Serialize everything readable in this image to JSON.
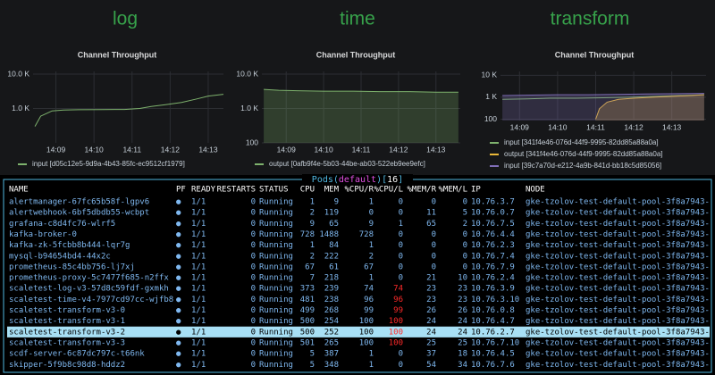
{
  "dashboard": {
    "panels": [
      {
        "heading": "log",
        "chart": {
          "type": "line",
          "title": "Channel Throughput",
          "log_scale": true,
          "grid": true,
          "ylim": [
            100,
            12000
          ],
          "yticks": [
            {
              "value": 1000,
              "label": "1.0 K"
            },
            {
              "value": 10000,
              "label": "10.0 K"
            }
          ],
          "xlim": [
            8.4,
            13.4
          ],
          "xticks": [
            {
              "value": 9,
              "label": "14:09"
            },
            {
              "value": 10,
              "label": "14:10"
            },
            {
              "value": 11,
              "label": "14:11"
            },
            {
              "value": 12,
              "label": "14:12"
            },
            {
              "value": 13,
              "label": "14:13"
            }
          ],
          "series": [
            {
              "name": "input [d05c12e5-9d9a-4b43-85fc-ec9512cf1979]",
              "color": "#7eb26d",
              "fill": false,
              "x": [
                8.45,
                8.6,
                8.9,
                9.2,
                9.6,
                10.2,
                10.8,
                11.2,
                11.5,
                11.9,
                12.3,
                12.7,
                13.0,
                13.4
              ],
              "values": [
                300,
                600,
                850,
                900,
                920,
                930,
                940,
                1000,
                1150,
                1300,
                1500,
                1900,
                2300,
                2600
              ]
            }
          ]
        }
      },
      {
        "heading": "time",
        "chart": {
          "type": "line",
          "title": "Channel Throughput",
          "log_scale": true,
          "grid": true,
          "ylim": [
            100,
            12000
          ],
          "yticks": [
            100,
            {
              "value": 1000,
              "label": "1.0 K"
            },
            {
              "value": 10000,
              "label": "10.0 K"
            }
          ],
          "xlim": [
            8.35,
            13.65
          ],
          "xticks": [
            {
              "value": 9,
              "label": "14:09"
            },
            {
              "value": 10,
              "label": "14:10"
            },
            {
              "value": 11,
              "label": "14:11"
            },
            {
              "value": 12,
              "label": "14:12"
            },
            {
              "value": 13,
              "label": "14:13"
            }
          ],
          "series": [
            {
              "name": "output [0afb9f4e-5b03-44be-ab03-522eb9ee9efc]",
              "color": "#7eb26d",
              "fill": true,
              "x": [
                8.4,
                8.8,
                9.3,
                10.0,
                10.8,
                11.5,
                12.3,
                13.0,
                13.6
              ],
              "values": [
                3600,
                3400,
                3300,
                3200,
                3200,
                3100,
                3100,
                3000,
                3000
              ]
            }
          ]
        }
      },
      {
        "heading": "transform",
        "chart": {
          "type": "line",
          "title": "Channel Throughput",
          "log_scale": true,
          "grid": true,
          "ylim": [
            87,
            15000
          ],
          "yticks": [
            100,
            {
              "value": 1000,
              "label": "1 K"
            },
            {
              "value": 10000,
              "label": "10 K"
            }
          ],
          "xlim": [
            8.5,
            13.9
          ],
          "xticks": [
            {
              "value": 9,
              "label": "14:09"
            },
            {
              "value": 10,
              "label": "14:10"
            },
            {
              "value": 11,
              "label": "14:11"
            },
            {
              "value": 12,
              "label": "14:12"
            },
            {
              "value": 13,
              "label": "14:13"
            }
          ],
          "series": [
            {
              "name": "input [341f4e46-076d-44f9-9995-82dd85a88a0a]",
              "color": "#7eb26d",
              "fill": false,
              "x": [
                8.55,
                9.2,
                9.8,
                10.5,
                11.2,
                11.9,
                12.6,
                13.2,
                13.85
              ],
              "values": [
                800,
                850,
                900,
                900,
                950,
                1000,
                1100,
                1200,
                1300
              ]
            },
            {
              "name": "output [341f4e46-076d-44f9-9995-82dd85a88a0a]",
              "color": "#eab839",
              "fill": true,
              "x": [
                11.0,
                11.1,
                11.3,
                11.6,
                12.0,
                12.5,
                13.0,
                13.5,
                13.85
              ],
              "values": [
                100,
                300,
                600,
                800,
                900,
                1000,
                1100,
                1200,
                1300
              ]
            },
            {
              "name": "input [39c7a70d-e212-4a9b-841d-bb18c5d85056]",
              "color": "#806eb7",
              "fill": true,
              "x": [
                8.55,
                9.3,
                10.0,
                10.8,
                11.5,
                12.3,
                13.0,
                13.85
              ],
              "values": [
                1200,
                1250,
                1300,
                1300,
                1350,
                1400,
                1450,
                1500
              ]
            }
          ]
        }
      }
    ]
  },
  "terminal": {
    "title_parts": [
      "Pods(",
      "default",
      ")[",
      "16",
      "]"
    ],
    "columns": [
      "NAME",
      "PF",
      "READY",
      "RESTARTS",
      "STATUS",
      "CPU",
      "MEM",
      "%CPU/R",
      "%CPU/L",
      "%MEM/R",
      "%MEM/L",
      "IP",
      "NODE"
    ],
    "rows": [
      {
        "cells": [
          "alertmanager-67fc65b58f-lgpv6",
          "●",
          "1/1",
          0,
          "Running",
          1,
          9,
          1,
          0,
          0,
          0,
          "10.76.3.7",
          "gke-tzolov-test-default-pool-3f8a7943-"
        ]
      },
      {
        "cells": [
          "alertwebhook-6bf5dbdb55-wcbpt",
          "●",
          "1/1",
          0,
          "Running",
          2,
          119,
          0,
          0,
          11,
          5,
          "10.76.0.7",
          "gke-tzolov-test-default-pool-3f8a7943-"
        ]
      },
      {
        "cells": [
          "grafana-c8d4fc76-wlrf5",
          "●",
          "1/1",
          0,
          "Running",
          9,
          65,
          9,
          1,
          65,
          2,
          "10.76.7.5",
          "gke-tzolov-test-default-pool-3f8a7943-"
        ]
      },
      {
        "cells": [
          "kafka-broker-0",
          "●",
          "1/1",
          0,
          "Running",
          728,
          1488,
          728,
          0,
          0,
          0,
          "10.76.4.4",
          "gke-tzolov-test-default-pool-3f8a7943-"
        ]
      },
      {
        "cells": [
          "kafka-zk-5fcbb8b444-lqr7g",
          "●",
          "1/1",
          0,
          "Running",
          1,
          84,
          1,
          0,
          0,
          0,
          "10.76.2.3",
          "gke-tzolov-test-default-pool-3f8a7943-"
        ]
      },
      {
        "cells": [
          "mysql-b94654bd4-44x2c",
          "●",
          "1/1",
          0,
          "Running",
          2,
          222,
          2,
          0,
          0,
          0,
          "10.76.7.4",
          "gke-tzolov-test-default-pool-3f8a7943-"
        ]
      },
      {
        "cells": [
          "prometheus-85c4bb756-lj7xj",
          "●",
          "1/1",
          0,
          "Running",
          67,
          61,
          67,
          0,
          0,
          0,
          "10.76.7.9",
          "gke-tzolov-test-default-pool-3f8a7943-"
        ]
      },
      {
        "cells": [
          "prometheus-proxy-5c7477f685-n2ffx",
          "●",
          "1/1",
          0,
          "Running",
          7,
          218,
          1,
          0,
          21,
          10,
          "10.76.2.4",
          "gke-tzolov-test-default-pool-3f8a7943-"
        ]
      },
      {
        "cells": [
          "scaletest-log-v3-57d8c59fdf-gxmkh",
          "●",
          "1/1",
          0,
          "Running",
          373,
          239,
          74,
          74,
          23,
          23,
          "10.76.3.9",
          "gke-tzolov-test-default-pool-3f8a7943-"
        ],
        "cpu_limit_alert": true
      },
      {
        "cells": [
          "scaletest-time-v4-7977cd97cc-wjfb8",
          "●",
          "1/1",
          0,
          "Running",
          481,
          238,
          96,
          96,
          23,
          23,
          "10.76.3.10",
          "gke-tzolov-test-default-pool-3f8a7943-"
        ],
        "cpu_limit_alert": true
      },
      {
        "cells": [
          "scaletest-transform-v3-0",
          "●",
          "1/1",
          0,
          "Running",
          499,
          268,
          99,
          99,
          26,
          26,
          "10.76.0.8",
          "gke-tzolov-test-default-pool-3f8a7943-"
        ],
        "cpu_limit_alert": true
      },
      {
        "cells": [
          "scaletest-transform-v3-1",
          "●",
          "1/1",
          0,
          "Running",
          500,
          254,
          100,
          100,
          24,
          24,
          "10.76.4.7",
          "gke-tzolov-test-default-pool-3f8a7943-"
        ],
        "cpu_limit_alert": true
      },
      {
        "cells": [
          "scaletest-transform-v3-2",
          "●",
          "1/1",
          0,
          "Running",
          500,
          252,
          100,
          100,
          24,
          24,
          "10.76.2.7",
          "gke-tzolov-test-default-pool-3f8a7943-"
        ],
        "cpu_limit_alert": true,
        "selected": true
      },
      {
        "cells": [
          "scaletest-transform-v3-3",
          "●",
          "1/1",
          0,
          "Running",
          501,
          265,
          100,
          100,
          25,
          25,
          "10.76.7.10",
          "gke-tzolov-test-default-pool-3f8a7943-"
        ],
        "cpu_limit_alert": true
      },
      {
        "cells": [
          "scdf-server-6c87dc797c-t66nk",
          "●",
          "1/1",
          0,
          "Running",
          5,
          387,
          1,
          0,
          37,
          18,
          "10.76.4.5",
          "gke-tzolov-test-default-pool-3f8a7943-"
        ]
      },
      {
        "cells": [
          "skipper-5f9b8c98d8-hddz2",
          "●",
          "1/1",
          0,
          "Running",
          5,
          348,
          1,
          0,
          54,
          34,
          "10.76.7.6",
          "gke-tzolov-test-default-pool-3f8a7943-"
        ]
      }
    ]
  }
}
